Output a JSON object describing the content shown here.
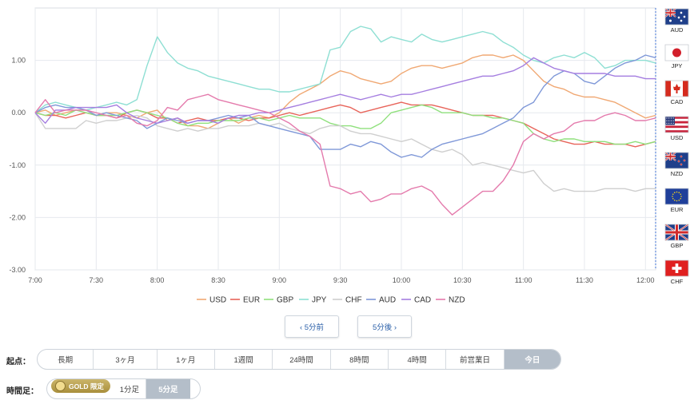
{
  "chart_data": {
    "type": "line",
    "y_ticks": [
      "1.00",
      "0.00",
      "-1.00",
      "-2.00",
      "-3.00"
    ],
    "ylim": [
      -3.0,
      2.0
    ],
    "x_ticks": [
      "7:00",
      "7:30",
      "8:00",
      "8:30",
      "9:00",
      "9:30",
      "10:00",
      "10:30",
      "11:00",
      "11:30",
      "12:00"
    ],
    "x_start_min": 420,
    "x_end_min": 725,
    "step_min": 5,
    "grid": true,
    "legend": "bottom",
    "series": [
      {
        "name": "USD",
        "color": "#f0a873",
        "values": [
          0.0,
          0.05,
          -0.05,
          0.0,
          0.05,
          0.05,
          -0.05,
          0.0,
          0.0,
          -0.05,
          -0.1,
          0.0,
          0.05,
          -0.15,
          -0.1,
          -0.25,
          -0.25,
          -0.3,
          -0.2,
          -0.1,
          -0.2,
          -0.1,
          -0.05,
          -0.1,
          0.0,
          0.2,
          0.35,
          0.45,
          0.55,
          0.7,
          0.8,
          0.75,
          0.65,
          0.6,
          0.55,
          0.6,
          0.75,
          0.85,
          0.9,
          0.9,
          0.85,
          0.9,
          0.95,
          1.05,
          1.1,
          1.1,
          1.05,
          1.1,
          1.0,
          0.8,
          0.6,
          0.5,
          0.45,
          0.35,
          0.3,
          0.3,
          0.25,
          0.2,
          0.1,
          0.0,
          -0.1,
          -0.05
        ]
      },
      {
        "name": "EUR",
        "color": "#e8645a",
        "values": [
          0.0,
          -0.05,
          -0.05,
          -0.1,
          -0.05,
          0.0,
          -0.05,
          -0.05,
          -0.1,
          0.0,
          0.05,
          0.0,
          -0.1,
          -0.1,
          -0.2,
          -0.15,
          -0.1,
          -0.15,
          -0.15,
          -0.1,
          -0.1,
          -0.15,
          -0.1,
          -0.1,
          -0.05,
          0.0,
          -0.05,
          0.0,
          0.05,
          0.1,
          0.15,
          0.1,
          0.0,
          0.05,
          0.1,
          0.15,
          0.2,
          0.15,
          0.15,
          0.15,
          0.1,
          0.05,
          0.0,
          -0.05,
          -0.05,
          -0.05,
          -0.1,
          -0.15,
          -0.2,
          -0.3,
          -0.4,
          -0.5,
          -0.55,
          -0.6,
          -0.6,
          -0.55,
          -0.6,
          -0.6,
          -0.6,
          -0.65,
          -0.6,
          -0.55
        ]
      },
      {
        "name": "GBP",
        "color": "#8fe07c",
        "values": [
          0.0,
          -0.05,
          0.0,
          -0.05,
          0.05,
          0.0,
          -0.05,
          -0.05,
          -0.05,
          0.0,
          0.05,
          0.0,
          -0.05,
          -0.1,
          -0.2,
          -0.25,
          -0.2,
          -0.2,
          -0.15,
          -0.15,
          -0.15,
          -0.1,
          -0.1,
          -0.15,
          -0.1,
          -0.05,
          -0.1,
          -0.1,
          -0.1,
          -0.2,
          -0.25,
          -0.25,
          -0.3,
          -0.3,
          -0.2,
          0.0,
          0.05,
          0.1,
          0.15,
          0.1,
          0.0,
          0.0,
          0.0,
          -0.05,
          -0.05,
          -0.1,
          -0.1,
          -0.15,
          -0.2,
          -0.4,
          -0.5,
          -0.55,
          -0.5,
          -0.5,
          -0.55,
          -0.55,
          -0.55,
          -0.6,
          -0.6,
          -0.55,
          -0.6,
          -0.55
        ]
      },
      {
        "name": "JPY",
        "color": "#8edfd3",
        "values": [
          0.0,
          0.15,
          0.2,
          0.15,
          0.1,
          0.05,
          0.1,
          0.15,
          0.2,
          0.15,
          0.25,
          0.9,
          1.45,
          1.15,
          0.95,
          0.85,
          0.8,
          0.7,
          0.65,
          0.6,
          0.55,
          0.5,
          0.45,
          0.45,
          0.4,
          0.4,
          0.45,
          0.5,
          0.55,
          1.2,
          1.25,
          1.55,
          1.65,
          1.6,
          1.35,
          1.45,
          1.4,
          1.35,
          1.5,
          1.4,
          1.35,
          1.4,
          1.45,
          1.5,
          1.55,
          1.5,
          1.35,
          1.25,
          1.1,
          1.0,
          0.95,
          1.05,
          1.1,
          1.05,
          1.15,
          1.05,
          0.85,
          0.9,
          1.0,
          1.0,
          1.0,
          0.95
        ]
      },
      {
        "name": "CHF",
        "color": "#cfcfcf",
        "values": [
          0.0,
          -0.3,
          -0.3,
          -0.3,
          -0.3,
          -0.15,
          -0.2,
          -0.15,
          -0.15,
          -0.1,
          -0.05,
          -0.1,
          -0.25,
          -0.3,
          -0.35,
          -0.3,
          -0.35,
          -0.3,
          -0.3,
          -0.25,
          -0.25,
          -0.25,
          -0.2,
          -0.25,
          -0.2,
          -0.3,
          -0.35,
          -0.4,
          -0.3,
          -0.25,
          -0.25,
          -0.35,
          -0.4,
          -0.4,
          -0.45,
          -0.5,
          -0.55,
          -0.5,
          -0.6,
          -0.7,
          -0.75,
          -0.7,
          -0.8,
          -1.0,
          -0.95,
          -1.0,
          -1.05,
          -1.1,
          -1.15,
          -1.1,
          -1.35,
          -1.5,
          -1.45,
          -1.5,
          -1.5,
          -1.5,
          -1.45,
          -1.45,
          -1.45,
          -1.5,
          -1.45,
          -1.45
        ]
      },
      {
        "name": "AUD",
        "color": "#7f98d8",
        "values": [
          0.0,
          0.1,
          0.15,
          0.1,
          0.1,
          0.05,
          -0.05,
          0.0,
          -0.05,
          -0.1,
          -0.15,
          -0.3,
          -0.2,
          -0.1,
          -0.15,
          -0.2,
          -0.15,
          -0.15,
          -0.1,
          -0.05,
          -0.1,
          -0.05,
          -0.2,
          -0.25,
          -0.3,
          -0.35,
          -0.4,
          -0.45,
          -0.7,
          -0.7,
          -0.7,
          -0.6,
          -0.65,
          -0.55,
          -0.6,
          -0.75,
          -0.85,
          -0.8,
          -0.85,
          -0.7,
          -0.6,
          -0.55,
          -0.5,
          -0.45,
          -0.4,
          -0.3,
          -0.2,
          -0.1,
          0.1,
          0.2,
          0.5,
          0.7,
          0.8,
          0.75,
          0.6,
          0.55,
          0.7,
          0.85,
          0.95,
          1.0,
          1.1,
          1.05
        ]
      },
      {
        "name": "CAD",
        "color": "#a57ee0",
        "values": [
          0.0,
          -0.2,
          0.05,
          0.05,
          0.1,
          0.1,
          0.1,
          0.1,
          0.15,
          0.0,
          -0.1,
          -0.15,
          -0.2,
          -0.15,
          -0.1,
          -0.2,
          -0.15,
          -0.15,
          -0.2,
          -0.1,
          -0.05,
          -0.05,
          0.0,
          0.0,
          0.05,
          0.1,
          0.15,
          0.2,
          0.25,
          0.3,
          0.35,
          0.3,
          0.25,
          0.3,
          0.35,
          0.3,
          0.35,
          0.35,
          0.4,
          0.45,
          0.5,
          0.55,
          0.6,
          0.65,
          0.7,
          0.7,
          0.75,
          0.8,
          0.9,
          1.05,
          0.95,
          0.85,
          0.8,
          0.75,
          0.75,
          0.75,
          0.75,
          0.7,
          0.7,
          0.7,
          0.65,
          0.65
        ]
      },
      {
        "name": "NZD",
        "color": "#e47aac",
        "values": [
          0.0,
          0.25,
          0.0,
          0.05,
          0.05,
          0.05,
          0.0,
          -0.05,
          -0.1,
          -0.05,
          -0.2,
          -0.25,
          -0.15,
          0.1,
          0.05,
          0.25,
          0.3,
          0.35,
          0.25,
          0.2,
          0.15,
          0.1,
          0.05,
          0.0,
          -0.1,
          -0.2,
          -0.35,
          -0.45,
          -0.6,
          -1.4,
          -1.45,
          -1.55,
          -1.5,
          -1.7,
          -1.65,
          -1.55,
          -1.55,
          -1.45,
          -1.4,
          -1.5,
          -1.75,
          -1.95,
          -1.8,
          -1.65,
          -1.5,
          -1.5,
          -1.3,
          -1.0,
          -0.55,
          -0.4,
          -0.5,
          -0.4,
          -0.35,
          -0.2,
          -0.15,
          -0.15,
          -0.05,
          0.0,
          -0.05,
          -0.15,
          -0.15,
          -0.1
        ]
      }
    ]
  },
  "flags": [
    {
      "label": "AUD",
      "icon": "australia-flag-icon"
    },
    {
      "label": "JPY",
      "icon": "japan-flag-icon"
    },
    {
      "label": "CAD",
      "icon": "canada-flag-icon"
    },
    {
      "label": "USD",
      "icon": "usa-flag-icon"
    },
    {
      "label": "NZD",
      "icon": "new-zealand-flag-icon"
    },
    {
      "label": "EUR",
      "icon": "eu-flag-icon"
    },
    {
      "label": "GBP",
      "icon": "uk-flag-icon"
    },
    {
      "label": "CHF",
      "icon": "switzerland-flag-icon"
    }
  ],
  "nav": {
    "prev_label": "‹ 5分前",
    "next_label": "5分後 ›"
  },
  "start_point": {
    "label": "起点：",
    "options": [
      "長期",
      "3ヶ月",
      "1ヶ月",
      "1週間",
      "24時間",
      "8時間",
      "4時間",
      "前営業日",
      "今日"
    ],
    "selected": "今日"
  },
  "timeframe": {
    "label": "時間足：",
    "gold_label": "GOLD 限定",
    "options": [
      "1分足",
      "5分足"
    ],
    "selected": "5分足"
  }
}
